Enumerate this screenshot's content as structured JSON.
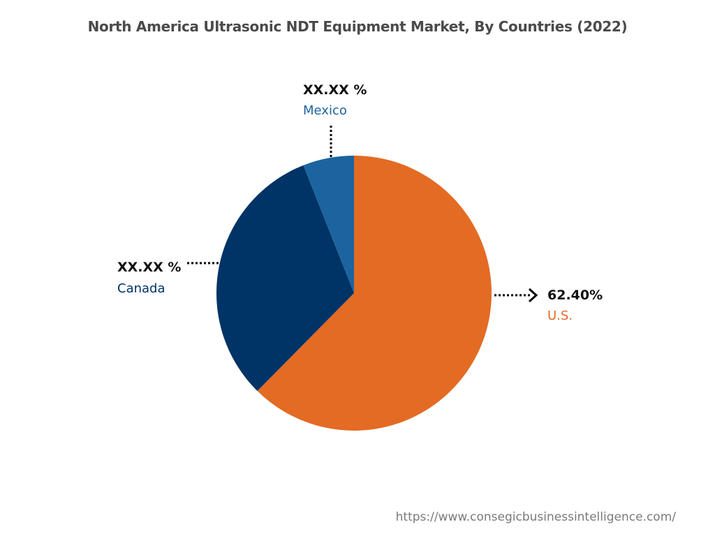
{
  "chart_data": {
    "type": "pie",
    "title": "North America Ultrasonic NDT Equipment Market, By Countries (2022)",
    "slices": [
      {
        "name": "U.S.",
        "value_label": "62.40%",
        "value": 62.4,
        "color": "#e36b24",
        "label_color": "#e36b24"
      },
      {
        "name": "Canada",
        "value_label": "XX.XX %",
        "value": 31.6,
        "color": "#003366",
        "label_color": "#003366"
      },
      {
        "name": "Mexico",
        "value_label": "XX.XX %",
        "value": 6.0,
        "color": "#1c64a0",
        "label_color": "#1c64a0"
      }
    ]
  },
  "source_url": "https://www.consegicbusinessintelligence.com/"
}
